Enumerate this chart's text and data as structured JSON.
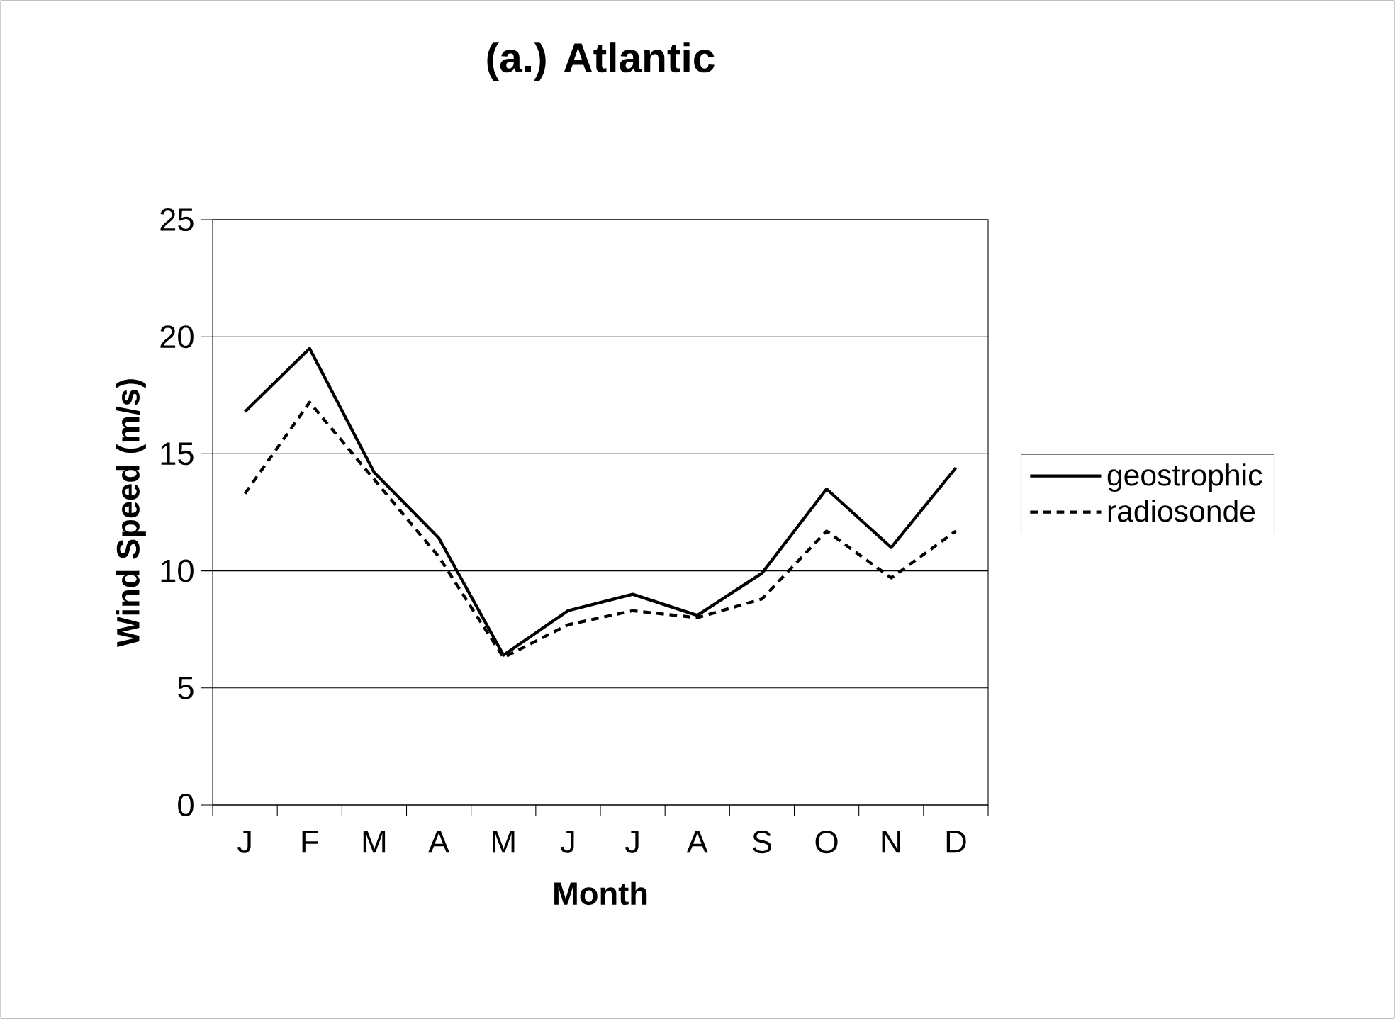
{
  "chart_data": {
    "type": "line",
    "title": "(a.) Atlantic",
    "xlabel": "Month",
    "ylabel": "Wind Speed (m/s)",
    "categories": [
      "J",
      "F",
      "M",
      "A",
      "M",
      "J",
      "J",
      "A",
      "S",
      "O",
      "N",
      "D"
    ],
    "series": [
      {
        "name": "geostrophic",
        "color": "#000000",
        "line_style": "solid",
        "values": [
          16.8,
          19.5,
          14.2,
          11.4,
          6.4,
          8.3,
          9.0,
          8.1,
          9.9,
          13.5,
          11.0,
          14.4
        ]
      },
      {
        "name": "radiosonde",
        "color": "#000000",
        "line_style": "dashed",
        "values": [
          13.3,
          17.2,
          13.9,
          10.6,
          6.3,
          7.7,
          8.3,
          8.0,
          8.8,
          11.7,
          9.7,
          11.7
        ]
      }
    ],
    "ylim": [
      0,
      25
    ],
    "yticks": [
      0,
      5,
      10,
      15,
      20,
      25
    ],
    "grid": "y",
    "legend": "right",
    "marker": "none"
  }
}
